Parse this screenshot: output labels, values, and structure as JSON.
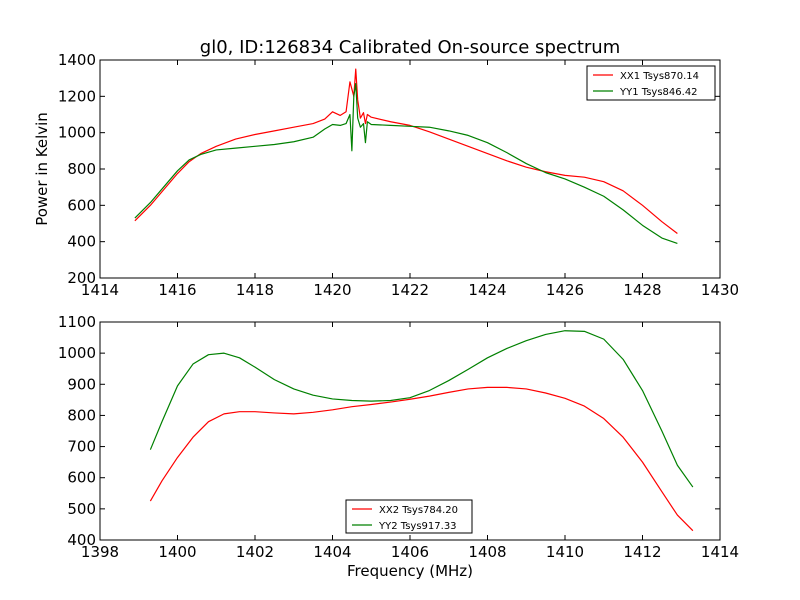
{
  "figure": {
    "title": "gl0, ID:126834 Calibrated On-source spectrum",
    "xlabel": "Frequency (MHz)",
    "colors": {
      "red": "#ff0000",
      "green": "#008000"
    }
  },
  "chart_data": [
    {
      "type": "line",
      "title": "gl0, ID:126834 Calibrated On-source spectrum",
      "xlabel": "",
      "ylabel": "Power in Kelvin",
      "xlim": [
        1414,
        1430
      ],
      "ylim": [
        200,
        1400
      ],
      "xticks": [
        "1414",
        "1416",
        "1418",
        "1420",
        "1422",
        "1424",
        "1426",
        "1428",
        "1430"
      ],
      "yticks": [
        "200",
        "400",
        "600",
        "800",
        "1000",
        "1200",
        "1400"
      ],
      "legend_position": "top-right",
      "grid": false,
      "series": [
        {
          "name": "XX1 Tsys870.14",
          "color": "#ff0000",
          "x": [
            1414.9,
            1415.3,
            1415.7,
            1416.0,
            1416.3,
            1416.6,
            1417.0,
            1417.5,
            1418.0,
            1418.5,
            1419.0,
            1419.5,
            1419.8,
            1420.0,
            1420.2,
            1420.35,
            1420.45,
            1420.55,
            1420.6,
            1420.65,
            1420.72,
            1420.8,
            1420.85,
            1420.9,
            1421.0,
            1421.5,
            1422.0,
            1422.5,
            1423.0,
            1423.5,
            1424.0,
            1424.5,
            1425.0,
            1425.5,
            1426.0,
            1426.5,
            1427.0,
            1427.5,
            1428.0,
            1428.5,
            1428.9
          ],
          "y": [
            515,
            600,
            700,
            775,
            840,
            885,
            925,
            965,
            990,
            1010,
            1030,
            1050,
            1075,
            1115,
            1095,
            1115,
            1280,
            1200,
            1350,
            1180,
            1080,
            1110,
            1050,
            1100,
            1085,
            1060,
            1040,
            1005,
            965,
            925,
            885,
            845,
            810,
            785,
            765,
            755,
            730,
            680,
            600,
            510,
            445
          ]
        },
        {
          "name": "YY1 Tsys846.42",
          "color": "#008000",
          "x": [
            1414.9,
            1415.3,
            1415.7,
            1416.0,
            1416.3,
            1416.6,
            1417.0,
            1417.5,
            1418.0,
            1418.5,
            1419.0,
            1419.5,
            1419.8,
            1420.0,
            1420.2,
            1420.35,
            1420.45,
            1420.5,
            1420.55,
            1420.6,
            1420.65,
            1420.72,
            1420.8,
            1420.85,
            1420.9,
            1421.0,
            1421.5,
            1422.0,
            1422.5,
            1423.0,
            1423.5,
            1424.0,
            1424.5,
            1425.0,
            1425.5,
            1426.0,
            1426.5,
            1427.0,
            1427.5,
            1428.0,
            1428.5,
            1428.9
          ],
          "y": [
            530,
            615,
            715,
            790,
            850,
            880,
            905,
            915,
            925,
            935,
            950,
            975,
            1020,
            1045,
            1040,
            1050,
            1100,
            900,
            1200,
            1270,
            1080,
            1030,
            1050,
            945,
            1060,
            1045,
            1040,
            1035,
            1030,
            1010,
            985,
            945,
            890,
            830,
            780,
            745,
            700,
            650,
            575,
            490,
            420,
            390
          ]
        }
      ]
    },
    {
      "type": "line",
      "title": "",
      "xlabel": "Frequency (MHz)",
      "ylabel": "",
      "xlim": [
        1398,
        1414
      ],
      "ylim": [
        400,
        1100
      ],
      "xticks": [
        "1398",
        "1400",
        "1402",
        "1404",
        "1406",
        "1408",
        "1410",
        "1412",
        "1414"
      ],
      "yticks": [
        "400",
        "500",
        "600",
        "700",
        "800",
        "900",
        "1000",
        "1100"
      ],
      "legend_position": "lower-center",
      "grid": false,
      "series": [
        {
          "name": "XX2 Tsys784.20",
          "color": "#ff0000",
          "x": [
            1399.3,
            1399.6,
            1400.0,
            1400.4,
            1400.8,
            1401.2,
            1401.6,
            1402.0,
            1402.5,
            1403.0,
            1403.5,
            1404.0,
            1404.5,
            1405.0,
            1405.5,
            1406.0,
            1406.5,
            1407.0,
            1407.5,
            1408.0,
            1408.5,
            1409.0,
            1409.5,
            1410.0,
            1410.5,
            1411.0,
            1411.5,
            1412.0,
            1412.5,
            1412.9,
            1413.3
          ],
          "y": [
            525,
            590,
            665,
            730,
            780,
            805,
            812,
            812,
            808,
            805,
            810,
            818,
            828,
            835,
            843,
            852,
            862,
            874,
            885,
            890,
            890,
            885,
            872,
            855,
            830,
            790,
            730,
            650,
            555,
            480,
            430
          ]
        },
        {
          "name": "YY2 Tsys917.33",
          "color": "#008000",
          "x": [
            1399.3,
            1399.6,
            1400.0,
            1400.4,
            1400.8,
            1401.2,
            1401.6,
            1402.0,
            1402.5,
            1403.0,
            1403.5,
            1404.0,
            1404.5,
            1405.0,
            1405.5,
            1406.0,
            1406.5,
            1407.0,
            1407.5,
            1408.0,
            1408.5,
            1409.0,
            1409.5,
            1410.0,
            1410.5,
            1411.0,
            1411.5,
            1412.0,
            1412.5,
            1412.9,
            1413.3
          ],
          "y": [
            690,
            780,
            895,
            965,
            995,
            1000,
            985,
            955,
            915,
            885,
            865,
            853,
            848,
            846,
            848,
            857,
            880,
            912,
            948,
            985,
            1015,
            1040,
            1060,
            1072,
            1070,
            1045,
            980,
            880,
            750,
            640,
            570
          ]
        }
      ]
    }
  ]
}
